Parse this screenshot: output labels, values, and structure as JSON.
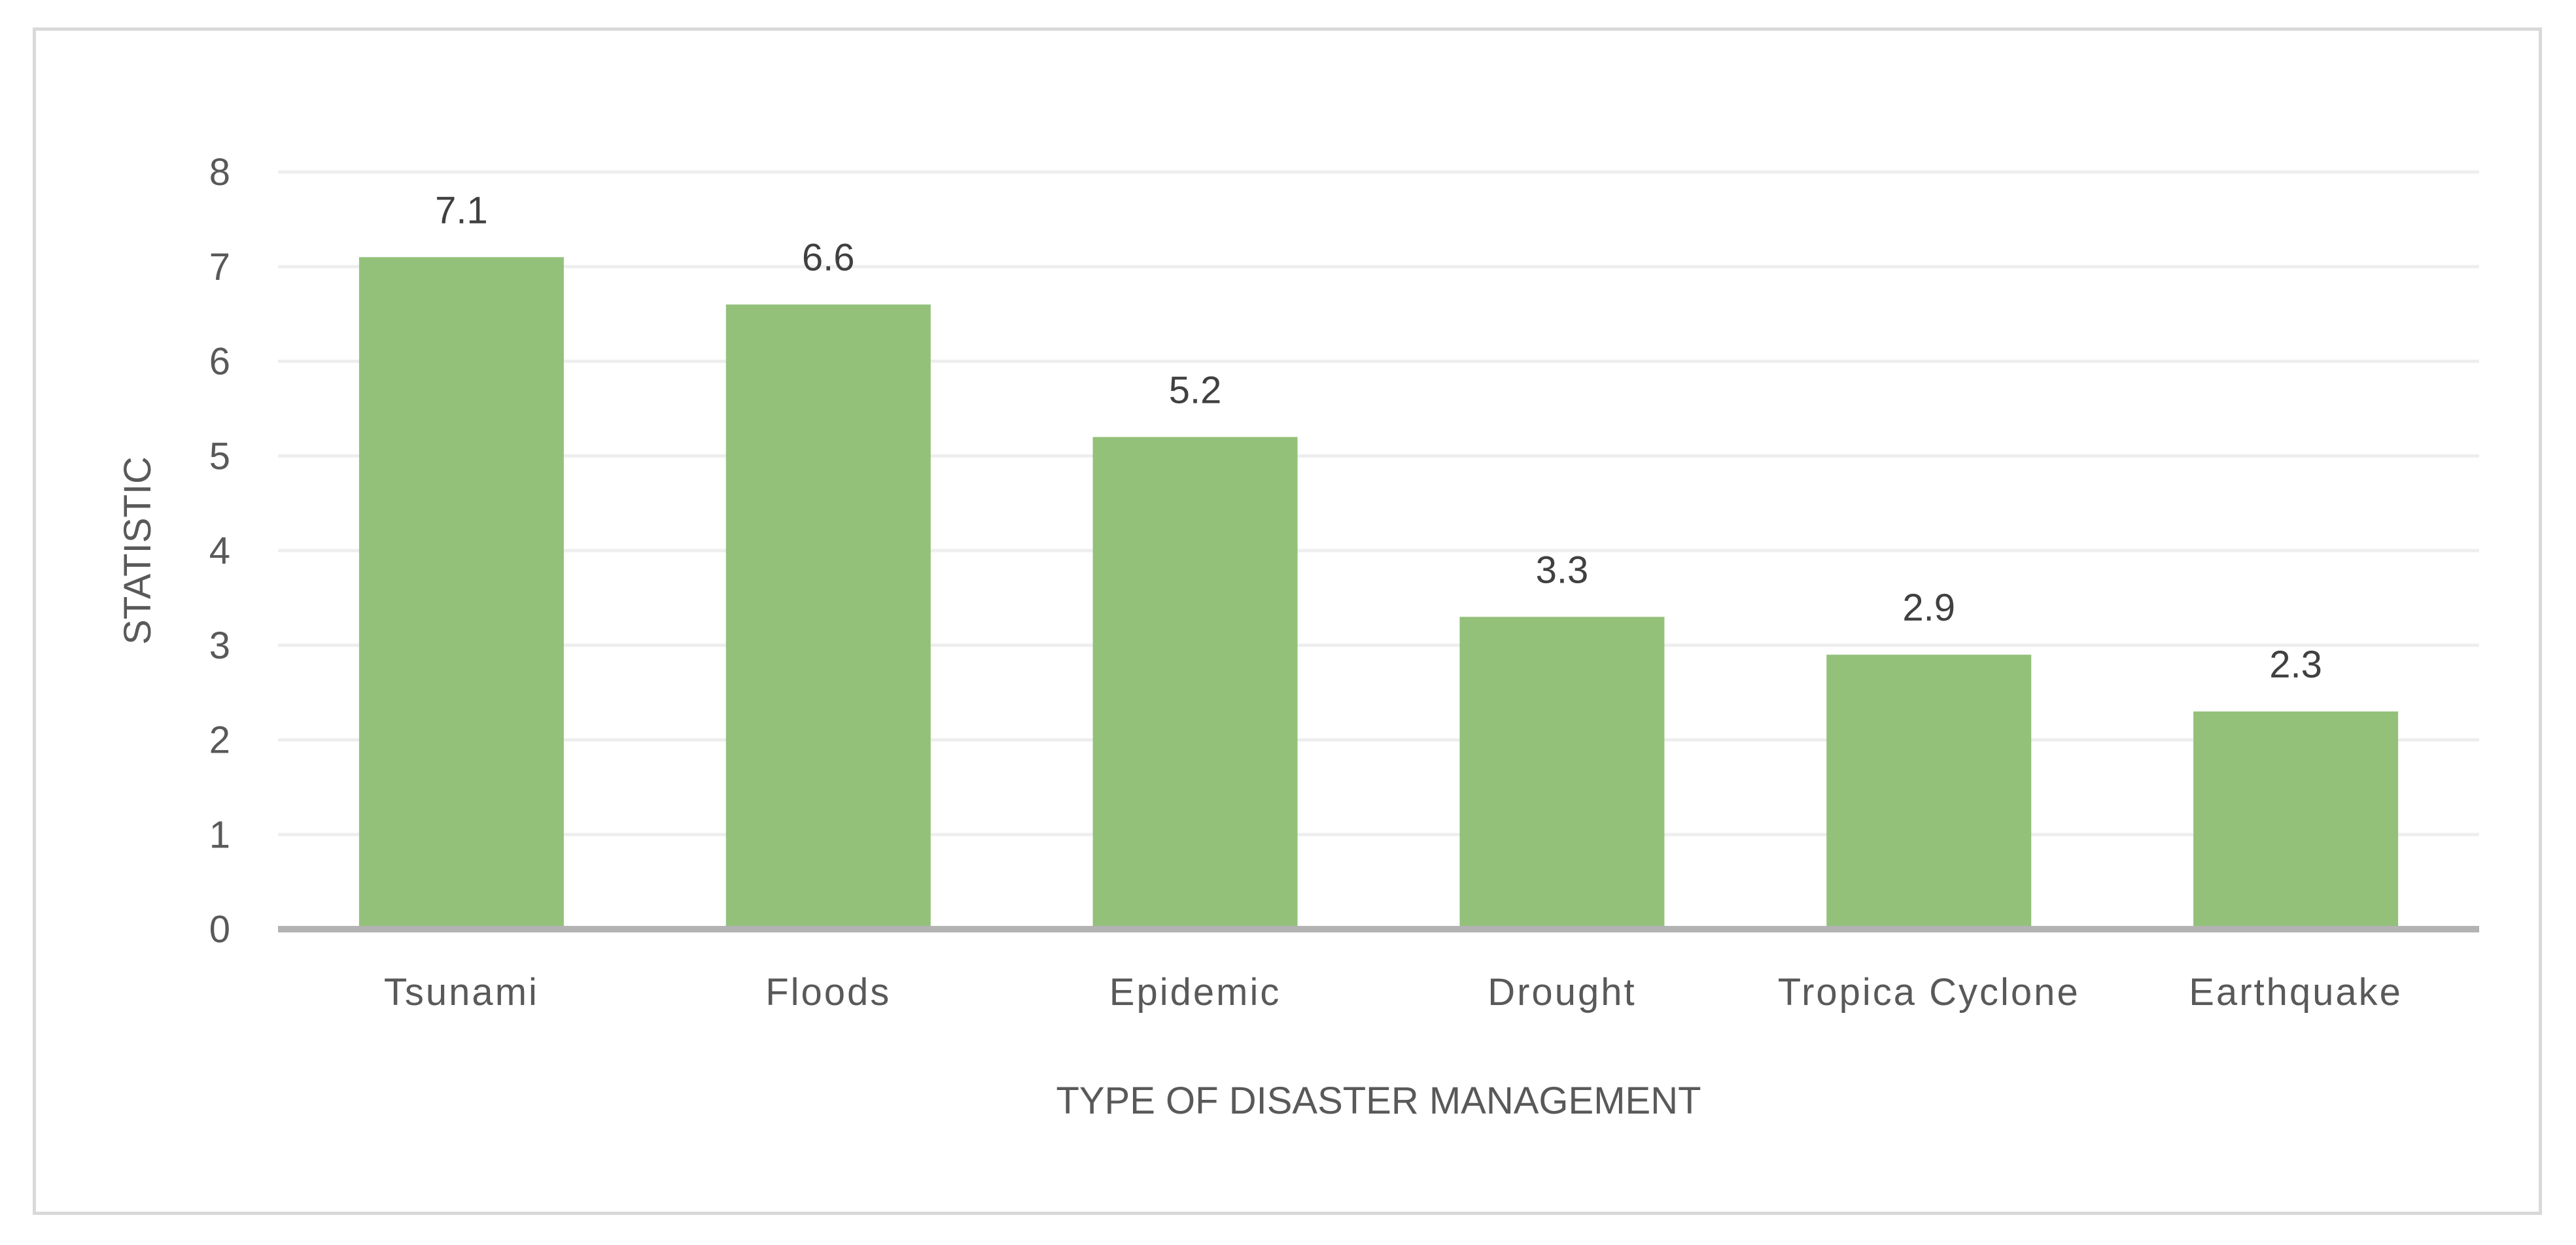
{
  "chart_data": {
    "type": "bar",
    "categories": [
      "Tsunami",
      "Floods",
      "Epidemic",
      "Drought",
      "Tropica Cyclone",
      "Earthquake"
    ],
    "values": [
      7.1,
      6.6,
      5.2,
      3.3,
      2.9,
      2.3
    ],
    "data_labels": [
      "7.1",
      "6.6",
      "5.2",
      "3.3",
      "2.9",
      "2.3"
    ],
    "title": "",
    "xlabel": "TYPE OF DISASTER MANAGEMENT",
    "ylabel": "STATISTIC",
    "ylim": [
      0,
      8
    ],
    "yticks": [
      0,
      1,
      2,
      3,
      4,
      5,
      6,
      7,
      8
    ],
    "grid": true,
    "legend": "none",
    "colors": {
      "bar": "#93c17a",
      "grid": "#eeeeee",
      "axis": "#b3b3b3",
      "text": "#595959",
      "label": "#404040",
      "frame": "#d9d9d9"
    }
  }
}
